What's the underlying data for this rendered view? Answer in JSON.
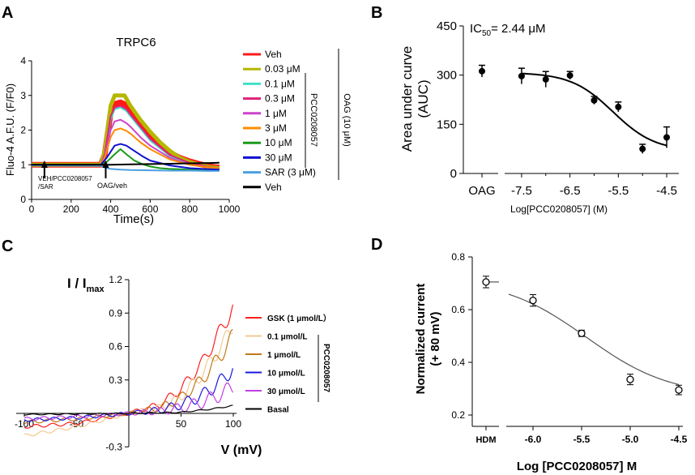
{
  "panels": {
    "A": {
      "letter": "A",
      "title": "TRPC6",
      "ylabel": "Fluo-4 A.F.U. (F/F0)",
      "xlabel": "Time(s)",
      "arrow1_label_line1": "VEH/PCC0208057",
      "arrow1_label_line2": "/SAR",
      "arrow2_label": "OAG/veh",
      "group_pcc": "PCC0208057",
      "group_oag": "OAG (10 μM)"
    },
    "B": {
      "letter": "B",
      "ic50_prefix": "IC",
      "ic50_sub": "50",
      "ic50_value": "= 2.44 μM",
      "ylabel_line1": "Area under curve",
      "ylabel_line2": "(AUC)",
      "xlabel": "Log[PCC0208057] (M)"
    },
    "C": {
      "letter": "C",
      "ylabel_main": "I / I",
      "ylabel_sub": "max",
      "xlabel": "V (mV)",
      "group_pcc": "PCC0208057"
    },
    "D": {
      "letter": "D",
      "ylabel_line1": "Normalized current",
      "ylabel_line2": "(+ 80 mV)",
      "xlabel": "Log [PCC0208057] M"
    }
  },
  "colors": {
    "veh": "#ff1a1a",
    "c003": "#b5b800",
    "c01": "#40e0c8",
    "c03": "#e0207a",
    "c1": "#cc44cc",
    "c3": "#ff8c00",
    "c10": "#1a9a1a",
    "c30": "#1010d0",
    "sar": "#4aa0e0",
    "black": "#000000",
    "gsk": "#ff2020",
    "p01": "#f5c890",
    "p1": "#c07818",
    "p10": "#1818e0",
    "p30": "#c040e0",
    "basal": "#000000",
    "fitD": "#555555"
  },
  "chart_data": [
    {
      "panel": "A",
      "type": "line",
      "title": "TRPC6",
      "xlabel": "Time(s)",
      "ylabel": "Fluo-4 A.F.U. (F/F0)",
      "xlim": [
        0,
        1000
      ],
      "ylim": [
        0,
        4
      ],
      "xticks": [
        0,
        200,
        400,
        600,
        800,
        1000
      ],
      "yticks": [
        0,
        1,
        2,
        3,
        4
      ],
      "series": [
        {
          "name": "Veh",
          "color_key": "veh",
          "x": [
            0,
            350,
            370,
            400,
            420,
            450,
            480,
            500,
            550,
            600,
            650,
            700,
            750,
            800,
            850,
            900,
            950
          ],
          "y": [
            1,
            1,
            1.3,
            2.5,
            2.75,
            2.8,
            2.72,
            2.6,
            2.25,
            1.9,
            1.6,
            1.35,
            1.2,
            1.1,
            1.02,
            0.95,
            0.92
          ]
        },
        {
          "name": "0.03 μM",
          "color_key": "c003",
          "x": [
            0,
            350,
            370,
            400,
            420,
            470,
            500,
            550,
            600,
            650,
            700,
            750,
            800,
            850,
            900,
            950
          ],
          "y": [
            1,
            1,
            1.4,
            2.7,
            3.0,
            3.0,
            2.7,
            2.3,
            1.95,
            1.65,
            1.4,
            1.2,
            1.08,
            1.0,
            0.93,
            0.9
          ]
        },
        {
          "name": "0.1 μM",
          "color_key": "c01",
          "x": [
            0,
            350,
            370,
            400,
            420,
            450,
            480,
            500,
            550,
            600,
            700,
            800,
            900,
            950
          ],
          "y": [
            1,
            1,
            1.3,
            2.3,
            2.6,
            2.65,
            2.55,
            2.4,
            2.05,
            1.7,
            1.25,
            1.03,
            0.92,
            0.9
          ]
        },
        {
          "name": "0.3 μM",
          "color_key": "c03",
          "x": [
            0,
            350,
            370,
            400,
            420,
            450,
            480,
            500,
            550,
            600,
            700,
            800,
            900,
            950
          ],
          "y": [
            1,
            1,
            1.3,
            2.4,
            2.65,
            2.7,
            2.6,
            2.45,
            2.1,
            1.75,
            1.28,
            1.05,
            0.93,
            0.9
          ]
        },
        {
          "name": "1 μM",
          "color_key": "c1",
          "x": [
            0,
            350,
            370,
            400,
            420,
            450,
            480,
            500,
            550,
            600,
            700,
            800,
            900,
            950
          ],
          "y": [
            1,
            1,
            1.25,
            2.0,
            2.25,
            2.3,
            2.2,
            2.1,
            1.8,
            1.55,
            1.2,
            1.0,
            0.92,
            0.9
          ]
        },
        {
          "name": "3 μM",
          "color_key": "c3",
          "x": [
            0,
            350,
            370,
            400,
            420,
            450,
            480,
            500,
            550,
            600,
            700,
            800,
            900,
            950
          ],
          "y": [
            1,
            1,
            1.2,
            1.8,
            2.0,
            2.05,
            1.98,
            1.9,
            1.65,
            1.45,
            1.15,
            1.0,
            0.92,
            0.9
          ]
        },
        {
          "name": "10 μM",
          "color_key": "c10",
          "x": [
            0,
            350,
            380,
            420,
            450,
            480,
            520,
            560,
            600,
            650,
            700,
            800,
            900,
            950
          ],
          "y": [
            1,
            1,
            1.08,
            1.3,
            1.45,
            1.3,
            1.12,
            1.02,
            0.95,
            0.9,
            0.88,
            0.86,
            0.85,
            0.85
          ]
        },
        {
          "name": "30 μM",
          "color_key": "c30",
          "x": [
            0,
            350,
            380,
            420,
            450,
            480,
            520,
            560,
            600,
            700,
            800,
            900,
            950
          ],
          "y": [
            1,
            1,
            1.2,
            1.55,
            1.6,
            1.55,
            1.4,
            1.25,
            1.12,
            0.98,
            0.9,
            0.87,
            0.86
          ]
        },
        {
          "name": "SAR (3 μM)",
          "color_key": "sar",
          "x": [
            0,
            350,
            370,
            400,
            450,
            500,
            600,
            700,
            800,
            900,
            950
          ],
          "y": [
            0.98,
            0.97,
            0.92,
            0.88,
            0.86,
            0.85,
            0.84,
            0.83,
            0.83,
            0.82,
            0.82
          ]
        },
        {
          "name": "Veh",
          "color_key": "black",
          "x": [
            0,
            100,
            200,
            300,
            400,
            500,
            600,
            700,
            800,
            900,
            950
          ],
          "y": [
            1,
            1,
            1,
            1,
            1,
            1.01,
            1.02,
            1.03,
            1.04,
            1.05,
            1.06
          ]
        }
      ],
      "legend": [
        "Veh",
        "0.03 μM",
        "0.1 μM",
        "0.3 μM",
        "1 μM",
        "3 μM",
        "10 μM",
        "30 μM",
        "SAR (3 μM)",
        "Veh"
      ],
      "legend_colors": [
        "veh",
        "c003",
        "c01",
        "c03",
        "c1",
        "c3",
        "c10",
        "c30",
        "sar",
        "black"
      ],
      "arrows_x": [
        65,
        375
      ]
    },
    {
      "panel": "B",
      "type": "scatter",
      "ylabel": "Area under curve (AUC)",
      "xlabel": "Log[PCC0208057] (M)",
      "ylim": [
        0,
        450
      ],
      "yticks": [
        0,
        150,
        300,
        450
      ],
      "xlim": [
        -7.8,
        -4.3
      ],
      "xticks": [
        -7.5,
        -6.5,
        -5.5,
        -4.5
      ],
      "control": {
        "label": "OAG",
        "value": 312,
        "err": 18
      },
      "points": [
        {
          "x": -7.5,
          "y": 297,
          "err": 24
        },
        {
          "x": -7.0,
          "y": 287,
          "err": 24
        },
        {
          "x": -6.5,
          "y": 299,
          "err": 12
        },
        {
          "x": -6.0,
          "y": 223,
          "err": 12
        },
        {
          "x": -5.5,
          "y": 203,
          "err": 15
        },
        {
          "x": -5.0,
          "y": 75,
          "err": 14
        },
        {
          "x": -4.5,
          "y": 110,
          "err": 32
        }
      ],
      "fit": {
        "top": 308,
        "bottom": 68,
        "log_ic50": -5.61,
        "hill": 1.0,
        "x_range": [
          -7.5,
          -4.5
        ]
      },
      "ic50": "2.44 μM"
    },
    {
      "panel": "C",
      "type": "line",
      "xlabel": "V (mV)",
      "ylabel": "I / Imax",
      "xlim": [
        -105,
        105
      ],
      "ylim": [
        -0.3,
        1.2
      ],
      "xticks": [
        -100,
        -50,
        50,
        100
      ],
      "yticks": [
        -0.3,
        0.3,
        0.6,
        0.9,
        1.2
      ],
      "series": [
        {
          "name": "GSK (1 μmol/L）",
          "color_key": "gsk",
          "x": [
            -100,
            -50,
            0,
            30,
            50,
            70,
            90,
            100
          ],
          "y": [
            -0.12,
            -0.09,
            0,
            0.08,
            0.22,
            0.45,
            0.78,
            0.95
          ]
        },
        {
          "name": "0.1 μmol/L",
          "color_key": "p01",
          "x": [
            -100,
            -50,
            0,
            30,
            50,
            70,
            90,
            100
          ],
          "y": [
            -0.2,
            -0.12,
            0,
            0.05,
            0.15,
            0.35,
            0.62,
            0.8
          ]
        },
        {
          "name": "1 μmol/L",
          "color_key": "p1",
          "x": [
            -100,
            -50,
            0,
            30,
            50,
            70,
            90,
            100
          ],
          "y": [
            -0.08,
            -0.05,
            0,
            0.05,
            0.14,
            0.3,
            0.55,
            0.7
          ]
        },
        {
          "name": "10 μmol/L",
          "color_key": "p10",
          "x": [
            -100,
            -50,
            0,
            30,
            50,
            70,
            90,
            100
          ],
          "y": [
            -0.06,
            -0.04,
            0,
            0.03,
            0.08,
            0.16,
            0.3,
            0.42
          ]
        },
        {
          "name": "30 μmol/L",
          "color_key": "p30",
          "x": [
            -100,
            -50,
            0,
            30,
            50,
            70,
            90,
            100
          ],
          "y": [
            -0.05,
            -0.03,
            0,
            0.02,
            0.05,
            0.1,
            0.18,
            0.24
          ]
        },
        {
          "name": "Basal",
          "color_key": "basal",
          "x": [
            -100,
            -50,
            0,
            50,
            80,
            100
          ],
          "y": [
            -0.01,
            -0.005,
            0,
            0.01,
            0.04,
            0.07
          ]
        }
      ]
    },
    {
      "panel": "D",
      "type": "scatter",
      "ylabel": "Normalized current (+ 80 mV)",
      "xlabel": "Log [PCC0208057] M",
      "ylim": [
        0.2,
        0.8
      ],
      "yticks": [
        0.2,
        0.4,
        0.6,
        0.8
      ],
      "xlim": [
        -6.25,
        -4.4
      ],
      "xticks": [
        -6.0,
        -5.5,
        -5.0,
        -4.5
      ],
      "control": {
        "label": "HDM",
        "value": 0.705,
        "err": 0.022
      },
      "points": [
        {
          "x": -6.0,
          "y": 0.635,
          "err": 0.022
        },
        {
          "x": -5.5,
          "y": 0.51,
          "err": 0.012
        },
        {
          "x": -5.0,
          "y": 0.335,
          "err": 0.02
        },
        {
          "x": -4.5,
          "y": 0.295,
          "err": 0.018
        }
      ],
      "fit": {
        "top": 0.72,
        "bottom": 0.27,
        "log_ic50": -5.45,
        "hill": 1.0,
        "x_range": [
          -6.25,
          -4.5
        ]
      }
    }
  ]
}
